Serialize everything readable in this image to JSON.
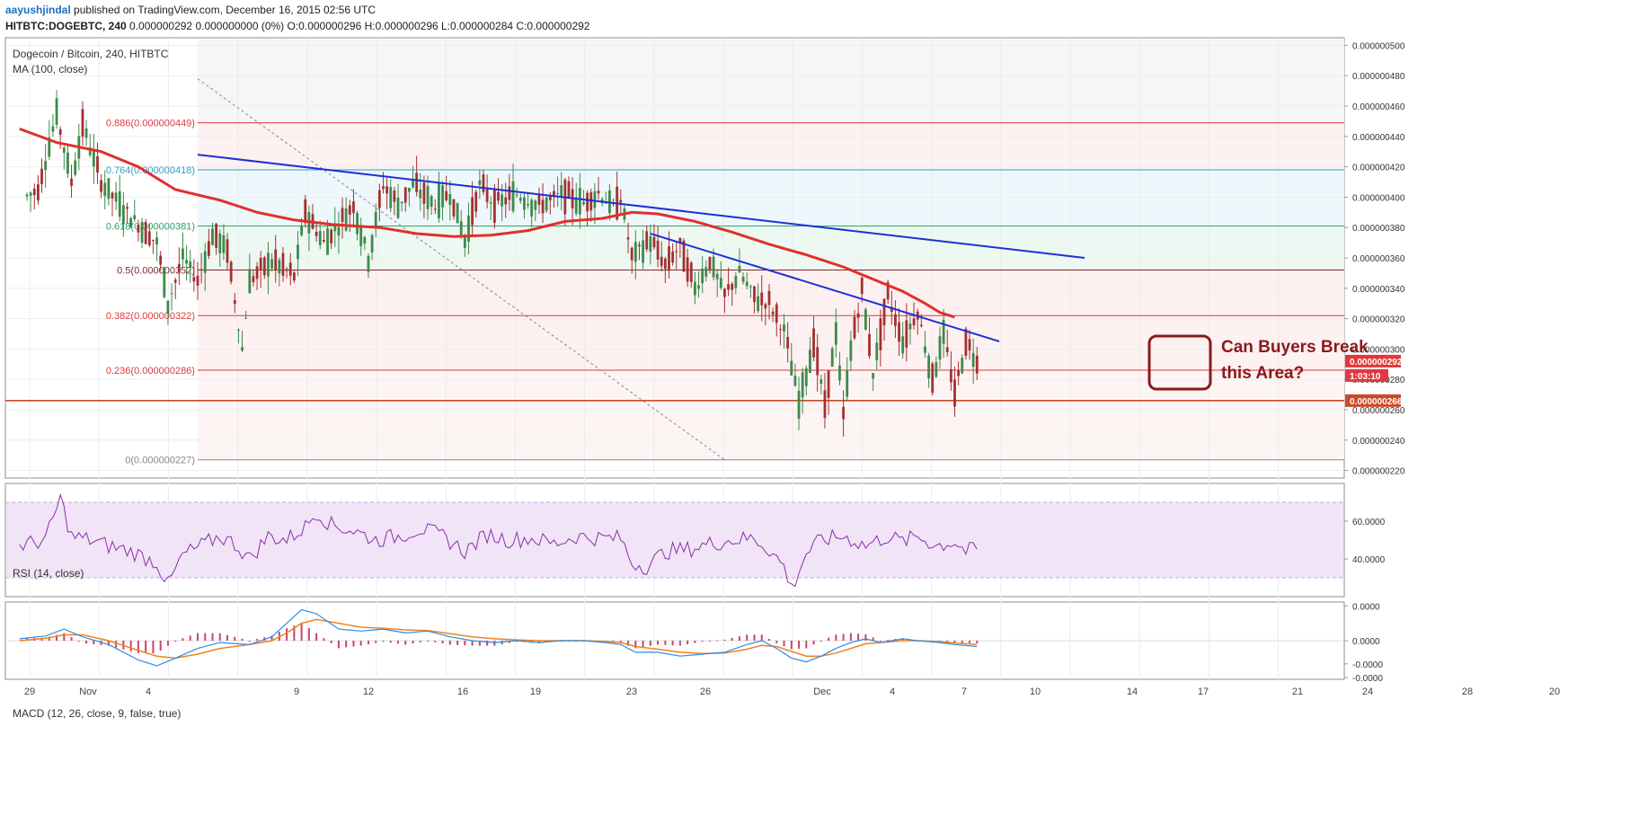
{
  "header": {
    "user": "aayushjindal",
    "published": "published on TradingView.com, December 16, 2015 02:56 UTC",
    "symbol": "HITBTC:DOGEBTC, 240",
    "ohlc": "0.000000292 0.000000000 (0%) O:0.000000296 H:0.000000296 L:0.000000284 C:0.000000292"
  },
  "chart_data": {
    "type": "candlestick",
    "title": "Dogecoin / Bitcoin, 240, HITBTC",
    "indicator_label": "MA (100, close)",
    "y_ticks": [
      "0.000000500",
      "0.000000480",
      "0.000000460",
      "0.000000440",
      "0.000000420",
      "0.000000400",
      "0.000000380",
      "0.000000360",
      "0.000000340",
      "0.000000320",
      "0.000000300",
      "0.000000280",
      "0.000000260",
      "0.000000240",
      "0.000000220"
    ],
    "ylim": [
      2.15e-07,
      5.05e-07
    ],
    "x_ticks": [
      "29",
      "Nov",
      "4",
      "9",
      "12",
      "16",
      "19",
      "23",
      "26",
      "Dec",
      "4",
      "7",
      "10",
      "14",
      "17",
      "21",
      "24",
      "28",
      "20"
    ],
    "fib_levels": [
      {
        "label": "0.886(0.000000449)",
        "value": 4.49e-07,
        "color": "#e0383d"
      },
      {
        "label": "0.764(0.000000418)",
        "value": 4.18e-07,
        "color": "#2e9fc9"
      },
      {
        "label": "0.618(0.000000381)",
        "value": 3.81e-07,
        "color": "#27a86b"
      },
      {
        "label": "0.5(0.000000352)",
        "value": 3.52e-07,
        "color": "#7a2a2a"
      },
      {
        "label": "0.382(0.000000322)",
        "value": 3.22e-07,
        "color": "#e0383d"
      },
      {
        "label": "0.236(0.000000286)",
        "value": 2.86e-07,
        "color": "#e0383d"
      },
      {
        "label": "0(0.000000227)",
        "value": 2.27e-07,
        "color": "#888888"
      }
    ],
    "support_level": 2.66e-07,
    "price_labels": [
      {
        "text": "0.000000292",
        "color": "#e0383d"
      },
      {
        "text": "1:03:10",
        "color": "#e0383d"
      },
      {
        "text": "0.000000266",
        "color": "#c94a2a"
      }
    ],
    "annotation": {
      "line1": "Can Buyers Break",
      "line2": "this Area?",
      "color": "#8b1a1a"
    },
    "ma100": [
      [
        -2,
        4.45e-07
      ],
      [
        8,
        4.36e-07
      ],
      [
        20,
        4.3e-07
      ],
      [
        30,
        4.2e-07
      ],
      [
        40,
        4.05e-07
      ],
      [
        52,
        3.98e-07
      ],
      [
        62,
        3.9e-07
      ],
      [
        72,
        3.85e-07
      ],
      [
        82,
        3.82e-07
      ],
      [
        95,
        3.8e-07
      ],
      [
        105,
        3.76e-07
      ],
      [
        115,
        3.74e-07
      ],
      [
        125,
        3.75e-07
      ],
      [
        135,
        3.78e-07
      ],
      [
        145,
        3.84e-07
      ],
      [
        155,
        3.86e-07
      ],
      [
        163,
        3.9e-07
      ],
      [
        170,
        3.89e-07
      ],
      [
        180,
        3.84e-07
      ],
      [
        190,
        3.77e-07
      ],
      [
        200,
        3.69e-07
      ],
      [
        210,
        3.62e-07
      ],
      [
        220,
        3.54e-07
      ],
      [
        228,
        3.46e-07
      ],
      [
        236,
        3.38e-07
      ],
      [
        242,
        3.3e-07
      ],
      [
        246,
        3.24e-07
      ],
      [
        250,
        3.21e-07
      ]
    ],
    "trendlines": [
      {
        "from": [
          46,
          4.28e-07
        ],
        "to": [
          285,
          3.6e-07
        ],
        "color": "#1e2fd6"
      },
      {
        "from": [
          168,
          3.76e-07
        ],
        "to": [
          262,
          3.05e-07
        ],
        "color": "#1e2fd6"
      }
    ],
    "fib_diagonal": {
      "from": [
        46,
        4.78e-07
      ],
      "to": [
        188,
        2.27e-07
      ]
    },
    "price_points": [
      [
        -2,
        3.98e-07
      ],
      [
        3,
        4.05e-07
      ],
      [
        8,
        4.55e-07
      ],
      [
        12,
        4.1e-07
      ],
      [
        15,
        4.48e-07
      ],
      [
        20,
        4.1e-07
      ],
      [
        24,
        3.98e-07
      ],
      [
        30,
        3.82e-07
      ],
      [
        35,
        3.7e-07
      ],
      [
        38,
        3.3e-07
      ],
      [
        42,
        3.6e-07
      ],
      [
        46,
        3.45e-07
      ],
      [
        50,
        3.75e-07
      ],
      [
        54,
        3.65e-07
      ],
      [
        58,
        3e-07
      ],
      [
        60,
        3.45e-07
      ],
      [
        66,
        3.58e-07
      ],
      [
        72,
        3.48e-07
      ],
      [
        75,
        3.9e-07
      ],
      [
        80,
        3.7e-07
      ],
      [
        84,
        3.82e-07
      ],
      [
        88,
        3.95e-07
      ],
      [
        92,
        3.6e-07
      ],
      [
        96,
        4.08e-07
      ],
      [
        100,
        3.95e-07
      ],
      [
        104,
        4.08e-07
      ],
      [
        110,
        3.95e-07
      ],
      [
        114,
        4.03e-07
      ],
      [
        118,
        3.72e-07
      ],
      [
        122,
        4.08e-07
      ],
      [
        126,
        3.95e-07
      ],
      [
        132,
        4.02e-07
      ],
      [
        138,
        3.94e-07
      ],
      [
        144,
        4.02e-07
      ],
      [
        150,
        3.96e-07
      ],
      [
        154,
        4.03e-07
      ],
      [
        158,
        3.93e-07
      ],
      [
        160,
        4e-07
      ],
      [
        163,
        3.6e-07
      ],
      [
        168,
        3.72e-07
      ],
      [
        172,
        3.55e-07
      ],
      [
        176,
        3.68e-07
      ],
      [
        180,
        3.4e-07
      ],
      [
        184,
        3.58e-07
      ],
      [
        188,
        3.35e-07
      ],
      [
        192,
        3.5e-07
      ],
      [
        196,
        3.34e-07
      ],
      [
        200,
        3.3e-07
      ],
      [
        204,
        3.12e-07
      ],
      [
        208,
        2.65e-07
      ],
      [
        212,
        3.05e-07
      ],
      [
        215,
        2.62e-07
      ],
      [
        218,
        3.1e-07
      ],
      [
        220,
        2.55e-07
      ],
      [
        222,
        3e-07
      ],
      [
        225,
        3.38e-07
      ],
      [
        228,
        2.85e-07
      ],
      [
        232,
        3.35e-07
      ],
      [
        236,
        3.05e-07
      ],
      [
        240,
        3.25e-07
      ],
      [
        244,
        2.8e-07
      ],
      [
        247,
        3.1e-07
      ],
      [
        250,
        2.7e-07
      ],
      [
        253,
        3.05e-07
      ],
      [
        256,
        2.92e-07
      ]
    ],
    "rsi": {
      "label": "RSI (14, close)",
      "y_ticks": [
        "60.0000",
        "40.0000"
      ],
      "ylim": [
        20,
        80
      ],
      "points": [
        [
          -2,
          47
        ],
        [
          5,
          50
        ],
        [
          9,
          72
        ],
        [
          12,
          52
        ],
        [
          17,
          50
        ],
        [
          22,
          47
        ],
        [
          28,
          44
        ],
        [
          35,
          38
        ],
        [
          38,
          26
        ],
        [
          42,
          42
        ],
        [
          47,
          47
        ],
        [
          52,
          52
        ],
        [
          56,
          48
        ],
        [
          60,
          40
        ],
        [
          65,
          52
        ],
        [
          70,
          50
        ],
        [
          75,
          57
        ],
        [
          78,
          65
        ],
        [
          82,
          58
        ],
        [
          88,
          55
        ],
        [
          94,
          50
        ],
        [
          100,
          52
        ],
        [
          106,
          56
        ],
        [
          112,
          52
        ],
        [
          118,
          44
        ],
        [
          124,
          53
        ],
        [
          130,
          50
        ],
        [
          136,
          51
        ],
        [
          142,
          48
        ],
        [
          148,
          52
        ],
        [
          154,
          51
        ],
        [
          160,
          51
        ],
        [
          163,
          38
        ],
        [
          167,
          36
        ],
        [
          172,
          44
        ],
        [
          178,
          45
        ],
        [
          184,
          48
        ],
        [
          190,
          50
        ],
        [
          196,
          51
        ],
        [
          200,
          45
        ],
        [
          204,
          36
        ],
        [
          206,
          24
        ],
        [
          210,
          43
        ],
        [
          214,
          50
        ],
        [
          220,
          52
        ],
        [
          226,
          47
        ],
        [
          232,
          52
        ],
        [
          236,
          49
        ],
        [
          240,
          52
        ],
        [
          245,
          47
        ],
        [
          250,
          49
        ],
        [
          253,
          44
        ],
        [
          256,
          45
        ]
      ]
    },
    "macd": {
      "label": "MACD (12, 26, close, 9, false, true)",
      "y_ticks": [
        "0.0000",
        "0.0000",
        "-0.0000",
        "-0.0000"
      ],
      "ylim": [
        -1,
        1
      ],
      "macd_line": [
        [
          -2,
          0.05
        ],
        [
          5,
          0.12
        ],
        [
          10,
          0.3
        ],
        [
          15,
          0.1
        ],
        [
          22,
          -0.1
        ],
        [
          30,
          -0.5
        ],
        [
          35,
          -0.65
        ],
        [
          40,
          -0.45
        ],
        [
          46,
          -0.2
        ],
        [
          52,
          -0.05
        ],
        [
          60,
          -0.1
        ],
        [
          66,
          0.1
        ],
        [
          70,
          0.45
        ],
        [
          74,
          0.8
        ],
        [
          78,
          0.7
        ],
        [
          84,
          0.3
        ],
        [
          90,
          0.25
        ],
        [
          96,
          0.3
        ],
        [
          102,
          0.2
        ],
        [
          108,
          0.25
        ],
        [
          114,
          0.1
        ],
        [
          120,
          0.0
        ],
        [
          126,
          -0.05
        ],
        [
          132,
          0.0
        ],
        [
          138,
          -0.05
        ],
        [
          144,
          0.0
        ],
        [
          150,
          0.0
        ],
        [
          156,
          -0.05
        ],
        [
          160,
          -0.1
        ],
        [
          164,
          -0.3
        ],
        [
          170,
          -0.3
        ],
        [
          176,
          -0.4
        ],
        [
          182,
          -0.35
        ],
        [
          188,
          -0.3
        ],
        [
          194,
          -0.1
        ],
        [
          198,
          0.0
        ],
        [
          202,
          -0.2
        ],
        [
          206,
          -0.45
        ],
        [
          210,
          -0.55
        ],
        [
          214,
          -0.4
        ],
        [
          218,
          -0.2
        ],
        [
          222,
          -0.05
        ],
        [
          226,
          0.05
        ],
        [
          230,
          -0.05
        ],
        [
          236,
          0.05
        ],
        [
          240,
          0.0
        ],
        [
          246,
          -0.05
        ],
        [
          250,
          -0.1
        ],
        [
          256,
          -0.15
        ]
      ],
      "signal_line": [
        [
          -2,
          0.0
        ],
        [
          5,
          0.06
        ],
        [
          10,
          0.15
        ],
        [
          15,
          0.15
        ],
        [
          22,
          0.0
        ],
        [
          30,
          -0.25
        ],
        [
          35,
          -0.4
        ],
        [
          40,
          -0.45
        ],
        [
          46,
          -0.35
        ],
        [
          52,
          -0.2
        ],
        [
          60,
          -0.1
        ],
        [
          66,
          0.0
        ],
        [
          70,
          0.2
        ],
        [
          74,
          0.45
        ],
        [
          78,
          0.55
        ],
        [
          84,
          0.45
        ],
        [
          90,
          0.35
        ],
        [
          96,
          0.32
        ],
        [
          102,
          0.28
        ],
        [
          108,
          0.26
        ],
        [
          114,
          0.18
        ],
        [
          120,
          0.1
        ],
        [
          126,
          0.05
        ],
        [
          132,
          0.02
        ],
        [
          138,
          0.0
        ],
        [
          144,
          0.0
        ],
        [
          150,
          0.0
        ],
        [
          156,
          -0.02
        ],
        [
          160,
          -0.05
        ],
        [
          164,
          -0.15
        ],
        [
          170,
          -0.22
        ],
        [
          176,
          -0.3
        ],
        [
          182,
          -0.33
        ],
        [
          188,
          -0.32
        ],
        [
          194,
          -0.22
        ],
        [
          198,
          -0.12
        ],
        [
          202,
          -0.15
        ],
        [
          206,
          -0.28
        ],
        [
          210,
          -0.4
        ],
        [
          214,
          -0.4
        ],
        [
          218,
          -0.32
        ],
        [
          222,
          -0.2
        ],
        [
          226,
          -0.08
        ],
        [
          230,
          -0.05
        ],
        [
          236,
          0.0
        ],
        [
          240,
          0.0
        ],
        [
          246,
          -0.03
        ],
        [
          250,
          -0.06
        ],
        [
          256,
          -0.1
        ]
      ]
    },
    "colors": {
      "ma": "#e0302a",
      "trend": "#1e2fd6",
      "rsi": "#8b2fa8",
      "rsi_band": "#f1e4f7",
      "macd": "#2a8ee8",
      "signal": "#f0821e",
      "hist": "#cc4466",
      "up": "#3d8a4a",
      "down": "#a33030"
    }
  }
}
